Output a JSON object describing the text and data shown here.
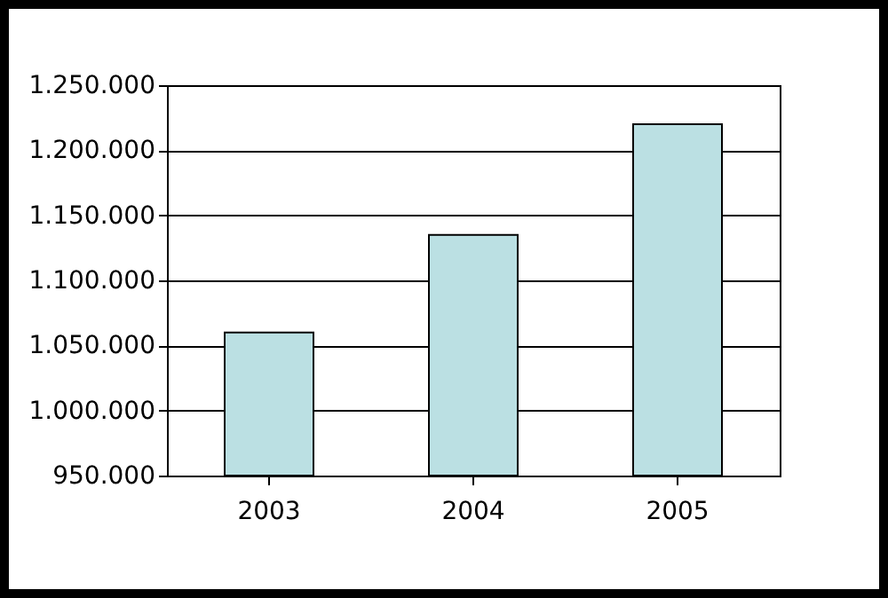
{
  "chart_data": {
    "type": "bar",
    "categories": [
      "2003",
      "2004",
      "2005"
    ],
    "values": [
      1060000,
      1135000,
      1220000
    ],
    "color": "#bbe0e3",
    "ylim": [
      950000,
      1250000
    ],
    "yticks": [
      {
        "value": 950000,
        "label": "950.000"
      },
      {
        "value": 1000000,
        "label": "1.000.000"
      },
      {
        "value": 1050000,
        "label": "1.050.000"
      },
      {
        "value": 1100000,
        "label": "1.100.000"
      },
      {
        "value": 1150000,
        "label": "1.150.000"
      },
      {
        "value": 1200000,
        "label": "1.200.000"
      },
      {
        "value": 1250000,
        "label": "1.250.000"
      }
    ],
    "grid": "y"
  }
}
